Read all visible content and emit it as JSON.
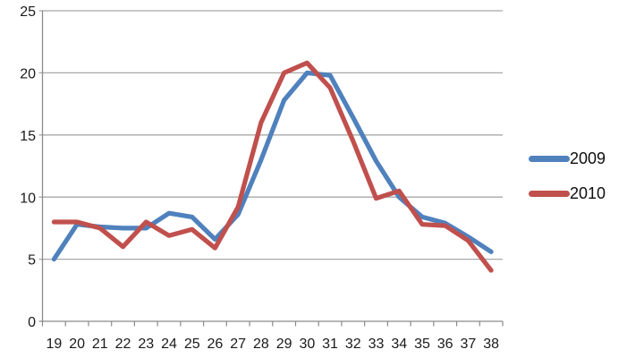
{
  "chart_data": {
    "type": "line",
    "x": [
      19,
      20,
      21,
      22,
      23,
      24,
      25,
      26,
      27,
      28,
      29,
      30,
      31,
      32,
      33,
      34,
      35,
      36,
      37,
      38
    ],
    "series": [
      {
        "name": "2009",
        "color": "#4F81BD",
        "values": [
          5.0,
          7.8,
          7.6,
          7.5,
          7.5,
          8.7,
          8.4,
          6.6,
          8.6,
          13.0,
          17.8,
          20.0,
          19.8,
          16.4,
          12.9,
          10.0,
          8.4,
          7.9,
          6.8,
          5.6
        ]
      },
      {
        "name": "2010",
        "color": "#C0504D",
        "values": [
          8.0,
          8.0,
          7.5,
          6.0,
          8.0,
          6.9,
          7.4,
          5.9,
          9.2,
          16.0,
          20.0,
          20.8,
          18.8,
          14.5,
          9.9,
          10.5,
          7.8,
          7.7,
          6.5,
          4.1
        ]
      }
    ],
    "title": "",
    "xlabel": "",
    "ylabel": "",
    "ylim": [
      0,
      25
    ],
    "yticks": [
      0,
      5,
      10,
      15,
      20,
      25
    ],
    "grid": true,
    "legend_position": "right"
  },
  "colors": {
    "gridline": "#A8A8A8",
    "axis": "#8A8A8A",
    "tick_text": "#1a1a1a",
    "background": "#FFFFFF"
  }
}
